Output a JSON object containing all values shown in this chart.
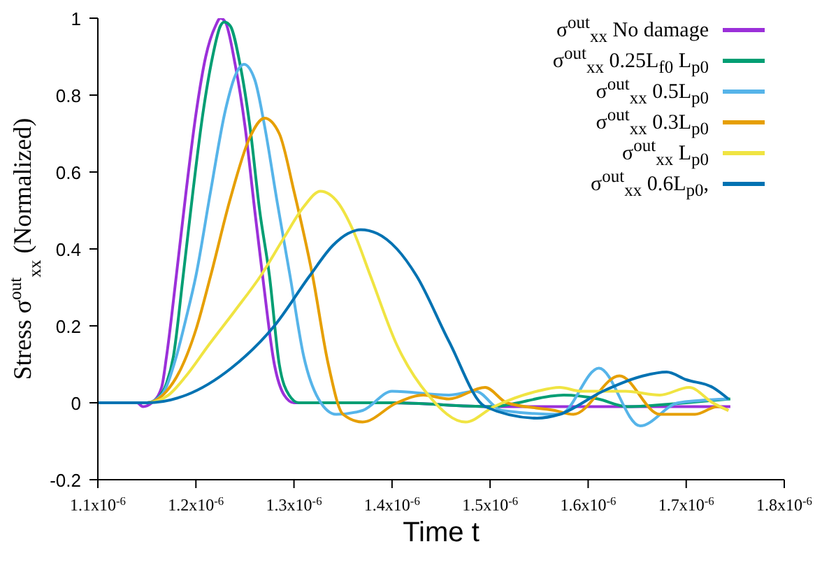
{
  "chart_data": {
    "type": "line",
    "xlabel": "Time t",
    "ylabel": "Stress σ$^{out}$$_{xx}$ (Normalized)",
    "xlim": [
      1.1e-06,
      1.8e-06
    ],
    "xticks": [
      {
        "value": 1.1e-06,
        "label": "1.1x10$^{-6}$"
      },
      {
        "value": 1.2e-06,
        "label": "1.2x10$^{-6}$"
      },
      {
        "value": 1.3e-06,
        "label": "1.3x10$^{-6}$"
      },
      {
        "value": 1.4e-06,
        "label": "1.4x10$^{-6}$"
      },
      {
        "value": 1.5e-06,
        "label": "1.5x10$^{-6}$"
      },
      {
        "value": 1.6e-06,
        "label": "1.6x10$^{-6}$"
      },
      {
        "value": 1.7e-06,
        "label": "1.7x10$^{-6}$"
      },
      {
        "value": 1.8e-06,
        "label": "1.8x10$^{-6}$"
      }
    ],
    "ylim": [
      -0.2,
      1
    ],
    "yticks": [
      -0.2,
      0,
      0.2,
      0.4,
      0.6,
      0.8,
      1
    ],
    "grid": false,
    "legend": "top right",
    "marker": "none",
    "line_style": "solid",
    "series": [
      {
        "name": "σ$^{out}$$_{xx}$ No damage",
        "color": "#9b30d9",
        "x": [
          1.1e-06,
          1.14e-06,
          1.146e-06,
          1.155e-06,
          1.165e-06,
          1.17e-06,
          1.18e-06,
          1.19e-06,
          1.2e-06,
          1.21e-06,
          1.22e-06,
          1.225e-06,
          1.23e-06,
          1.24e-06,
          1.25e-06,
          1.26e-06,
          1.268e-06,
          1.28e-06,
          1.29e-06,
          1.3e-06,
          1.4e-06,
          1.5e-06,
          1.745e-06
        ],
        "values": [
          0,
          0,
          -0.01,
          0,
          0.04,
          0.12,
          0.33,
          0.55,
          0.75,
          0.9,
          0.98,
          1,
          0.99,
          0.88,
          0.72,
          0.5,
          0.33,
          0.1,
          0.02,
          0,
          0,
          -0.01,
          -0.01
        ]
      },
      {
        "name": "σ$^{out}$$_{xx}$ 0.25L$_{f0}$ L$_{p0}$",
        "color": "#009e73",
        "x": [
          1.1e-06,
          1.15e-06,
          1.16e-06,
          1.17e-06,
          1.177e-06,
          1.187e-06,
          1.197e-06,
          1.207e-06,
          1.217e-06,
          1.225e-06,
          1.229e-06,
          1.235e-06,
          1.245e-06,
          1.255e-06,
          1.265e-06,
          1.275e-06,
          1.285e-06,
          1.295e-06,
          1.305e-06,
          1.4e-06,
          1.5e-06,
          1.575e-06,
          1.61e-06,
          1.64e-06,
          1.7e-06,
          1.745e-06
        ],
        "values": [
          0,
          0,
          0.01,
          0.05,
          0.12,
          0.33,
          0.55,
          0.75,
          0.9,
          0.98,
          0.99,
          0.98,
          0.88,
          0.72,
          0.5,
          0.33,
          0.1,
          0.02,
          0,
          0,
          -0.01,
          0.02,
          0.01,
          -0.01,
          0,
          0.01
        ]
      },
      {
        "name": "σ$^{out}$$_{xx}$ 0.5L$_{p0}$",
        "color": "#56b4e9",
        "x": [
          1.1e-06,
          1.15e-06,
          1.165e-06,
          1.18e-06,
          1.19e-06,
          1.2e-06,
          1.215e-06,
          1.23e-06,
          1.24e-06,
          1.249e-06,
          1.26e-06,
          1.27e-06,
          1.283e-06,
          1.296e-06,
          1.31e-06,
          1.325e-06,
          1.343e-06,
          1.37e-06,
          1.4e-06,
          1.458e-06,
          1.485e-06,
          1.512e-06,
          1.571e-06,
          1.611e-06,
          1.653e-06,
          1.692e-06,
          1.743e-06
        ],
        "values": [
          0,
          0,
          0.02,
          0.12,
          0.22,
          0.33,
          0.55,
          0.76,
          0.85,
          0.88,
          0.84,
          0.72,
          0.52,
          0.33,
          0.12,
          0.01,
          -0.03,
          -0.02,
          0.03,
          0.02,
          0.03,
          -0.02,
          -0.03,
          0.09,
          -0.06,
          0,
          0.01
        ]
      },
      {
        "name": "σ$^{out}$$_{xx}$ 0.3L$_{p0}$",
        "color": "#e69f00",
        "x": [
          1.1e-06,
          1.15e-06,
          1.17e-06,
          1.185e-06,
          1.2e-06,
          1.215e-06,
          1.235e-06,
          1.255e-06,
          1.27e-06,
          1.285e-06,
          1.3e-06,
          1.319e-06,
          1.335e-06,
          1.35e-06,
          1.37e-06,
          1.405e-06,
          1.432e-06,
          1.458e-06,
          1.495e-06,
          1.517e-06,
          1.566e-06,
          1.585e-06,
          1.632e-06,
          1.673e-06,
          1.709e-06,
          1.732e-06,
          1.743e-06
        ],
        "values": [
          0,
          0,
          0.03,
          0.09,
          0.19,
          0.33,
          0.53,
          0.69,
          0.74,
          0.7,
          0.55,
          0.33,
          0.1,
          -0.03,
          -0.05,
          0,
          0.02,
          0.01,
          0.04,
          0,
          -0.02,
          -0.03,
          0.07,
          -0.03,
          -0.03,
          -0.01,
          -0.02
        ]
      },
      {
        "name": "σ$^{out}$$_{xx}$ L$_{p0}$",
        "color": "#f0e442",
        "x": [
          1.1e-06,
          1.15e-06,
          1.172e-06,
          1.19e-06,
          1.213e-06,
          1.24e-06,
          1.266e-06,
          1.29e-06,
          1.31e-06,
          1.327e-06,
          1.345e-06,
          1.36e-06,
          1.378e-06,
          1.405e-06,
          1.437e-06,
          1.475e-06,
          1.504e-06,
          1.548e-06,
          1.571e-06,
          1.593e-06,
          1.638e-06,
          1.673e-06,
          1.703e-06,
          1.727e-06,
          1.743e-06
        ],
        "values": [
          0,
          0,
          0.02,
          0.07,
          0.15,
          0.24,
          0.33,
          0.43,
          0.51,
          0.55,
          0.52,
          0.45,
          0.33,
          0.15,
          0.02,
          -0.05,
          -0.01,
          0.03,
          0.04,
          0.03,
          0.03,
          0.02,
          0.04,
          0,
          -0.02
        ]
      },
      {
        "name": "σ$^{out}$$_{xx}$ 0.6L$_{p0}$,",
        "color": "#0072b2",
        "x": [
          1.1e-06,
          1.15e-06,
          1.19e-06,
          1.236e-06,
          1.28e-06,
          1.316e-06,
          1.34e-06,
          1.355e-06,
          1.368e-06,
          1.385e-06,
          1.405e-06,
          1.425e-06,
          1.458e-06,
          1.495e-06,
          1.548e-06,
          1.571e-06,
          1.615e-06,
          1.656e-06,
          1.68e-06,
          1.7e-06,
          1.727e-06,
          1.743e-06
        ],
        "values": [
          0,
          0,
          0.02,
          0.09,
          0.2,
          0.33,
          0.41,
          0.44,
          0.45,
          0.44,
          0.4,
          0.33,
          0.16,
          -0.01,
          -0.04,
          -0.03,
          0.03,
          0.07,
          0.08,
          0.06,
          0.04,
          0.01
        ]
      }
    ]
  }
}
